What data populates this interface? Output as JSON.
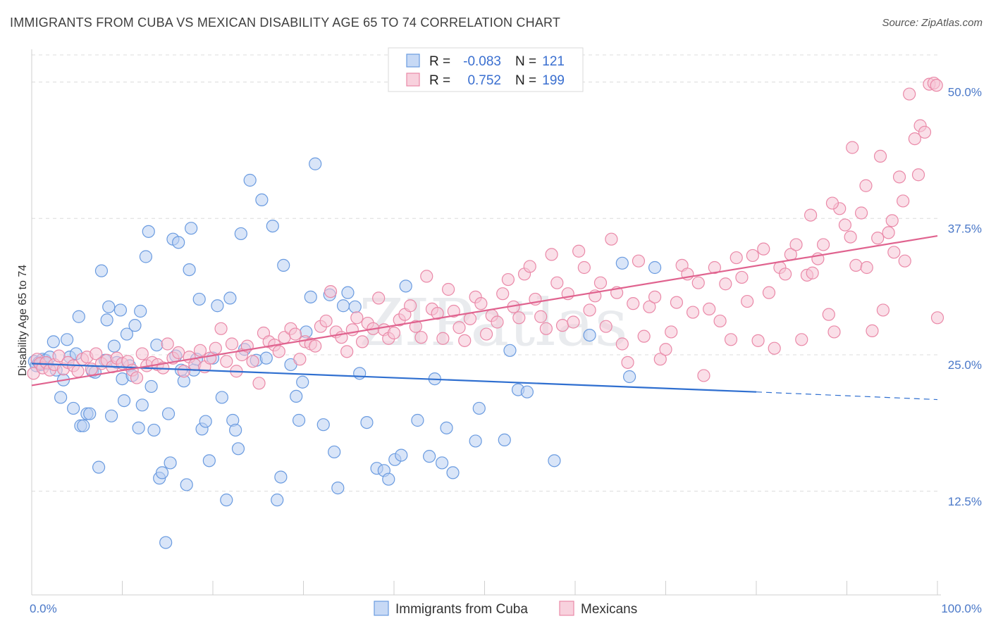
{
  "title": "IMMIGRANTS FROM CUBA VS MEXICAN DISABILITY AGE 65 TO 74 CORRELATION CHART",
  "source": "Source: ZipAtlas.com",
  "watermark": "ZIPatlas",
  "chart_data": {
    "type": "scatter",
    "xlabel": "",
    "ylabel": "Disability Age 65 to 74",
    "xlim": [
      0,
      100
    ],
    "ylim": [
      3,
      53
    ],
    "x_tick_labels": [
      "0.0%",
      "100.0%"
    ],
    "y_ticks": [
      12.5,
      25.0,
      37.5,
      50.0
    ],
    "y_tick_labels": [
      "12.5%",
      "25.0%",
      "37.5%",
      "50.0%"
    ],
    "grid": "horizontal dashed",
    "legend": {
      "placement": "top-center",
      "rows": [
        {
          "r_label": "R =",
          "r_value": "-0.083",
          "n_label": "N =",
          "n_value": "121"
        },
        {
          "r_label": "R =",
          "r_value": "0.752",
          "n_label": "N =",
          "n_value": "199"
        }
      ]
    },
    "series": [
      {
        "name": "Immigrants from Cuba",
        "color": "#6a9be0",
        "fill": "#b9d0f2",
        "trend": {
          "x0": 0,
          "y0": 24.2,
          "x1": 80,
          "y1": 21.6,
          "dash_to": 100,
          "dash_y": 20.9
        },
        "points": [
          [
            0.3,
            24.4
          ],
          [
            0.5,
            24.0
          ],
          [
            0.8,
            24.3
          ],
          [
            1.0,
            24.1
          ],
          [
            1.2,
            24.6
          ],
          [
            1.5,
            24.5
          ],
          [
            1.7,
            24.2
          ],
          [
            2.0,
            24.8
          ],
          [
            2.4,
            26.2
          ],
          [
            2.7,
            23.6
          ],
          [
            3.2,
            21.1
          ],
          [
            3.5,
            22.7
          ],
          [
            3.9,
            26.4
          ],
          [
            4.2,
            24.8
          ],
          [
            4.6,
            20.1
          ],
          [
            4.9,
            25.1
          ],
          [
            5.2,
            28.5
          ],
          [
            5.4,
            18.5
          ],
          [
            5.7,
            18.5
          ],
          [
            6.1,
            19.6
          ],
          [
            6.4,
            19.6
          ],
          [
            6.7,
            23.5
          ],
          [
            7.0,
            23.4
          ],
          [
            7.4,
            14.7
          ],
          [
            7.7,
            32.7
          ],
          [
            8.1,
            24.5
          ],
          [
            8.3,
            28.2
          ],
          [
            8.5,
            29.4
          ],
          [
            8.8,
            19.4
          ],
          [
            9.1,
            25.8
          ],
          [
            9.4,
            24.3
          ],
          [
            9.8,
            29.1
          ],
          [
            10.0,
            22.8
          ],
          [
            10.2,
            20.8
          ],
          [
            10.5,
            26.9
          ],
          [
            10.8,
            24.0
          ],
          [
            11.1,
            23.1
          ],
          [
            11.4,
            27.7
          ],
          [
            11.8,
            18.3
          ],
          [
            12.0,
            29.0
          ],
          [
            12.2,
            20.4
          ],
          [
            12.6,
            34.0
          ],
          [
            12.9,
            36.3
          ],
          [
            13.2,
            22.1
          ],
          [
            13.5,
            18.1
          ],
          [
            13.8,
            25.9
          ],
          [
            14.1,
            13.7
          ],
          [
            14.4,
            14.2
          ],
          [
            14.8,
            7.8
          ],
          [
            15.1,
            19.6
          ],
          [
            15.3,
            15.1
          ],
          [
            15.6,
            35.6
          ],
          [
            15.9,
            24.9
          ],
          [
            16.2,
            35.3
          ],
          [
            16.5,
            23.6
          ],
          [
            16.8,
            22.6
          ],
          [
            17.1,
            13.1
          ],
          [
            17.4,
            32.8
          ],
          [
            17.6,
            36.6
          ],
          [
            17.9,
            23.6
          ],
          [
            18.2,
            24.6
          ],
          [
            18.5,
            30.1
          ],
          [
            18.8,
            18.2
          ],
          [
            19.2,
            18.9
          ],
          [
            19.6,
            15.3
          ],
          [
            20.0,
            24.7
          ],
          [
            20.5,
            29.5
          ],
          [
            21.0,
            21.1
          ],
          [
            21.5,
            11.7
          ],
          [
            21.9,
            30.2
          ],
          [
            22.2,
            19.0
          ],
          [
            22.5,
            18.1
          ],
          [
            22.8,
            16.4
          ],
          [
            23.1,
            36.1
          ],
          [
            23.5,
            25.5
          ],
          [
            24.1,
            41.0
          ],
          [
            24.8,
            24.5
          ],
          [
            25.4,
            39.2
          ],
          [
            25.9,
            24.7
          ],
          [
            26.6,
            36.8
          ],
          [
            27.1,
            11.7
          ],
          [
            27.5,
            13.8
          ],
          [
            27.8,
            33.2
          ],
          [
            28.6,
            24.1
          ],
          [
            29.2,
            21.2
          ],
          [
            29.5,
            19.0
          ],
          [
            29.9,
            22.5
          ],
          [
            30.3,
            27.1
          ],
          [
            30.8,
            30.3
          ],
          [
            31.3,
            42.5
          ],
          [
            32.2,
            18.6
          ],
          [
            32.9,
            30.5
          ],
          [
            33.4,
            16.1
          ],
          [
            33.8,
            12.8
          ],
          [
            34.4,
            29.5
          ],
          [
            34.9,
            30.7
          ],
          [
            35.7,
            29.4
          ],
          [
            36.2,
            23.3
          ],
          [
            37.0,
            18.8
          ],
          [
            38.1,
            14.6
          ],
          [
            38.9,
            14.4
          ],
          [
            39.4,
            13.6
          ],
          [
            40.1,
            15.4
          ],
          [
            40.8,
            15.8
          ],
          [
            41.3,
            31.3
          ],
          [
            42.6,
            19.0
          ],
          [
            43.9,
            15.7
          ],
          [
            44.5,
            22.8
          ],
          [
            45.3,
            15.1
          ],
          [
            45.8,
            18.3
          ],
          [
            46.5,
            14.2
          ],
          [
            49.0,
            17.1
          ],
          [
            49.4,
            20.1
          ],
          [
            52.2,
            17.2
          ],
          [
            52.8,
            25.4
          ],
          [
            53.7,
            21.8
          ],
          [
            54.7,
            21.6
          ],
          [
            57.7,
            15.3
          ],
          [
            61.6,
            26.8
          ],
          [
            66.0,
            23.0
          ],
          [
            65.2,
            33.4
          ],
          [
            68.8,
            33.0
          ]
        ]
      },
      {
        "name": "Mexicans",
        "color": "#ea89a8",
        "fill": "#f6c5d5",
        "trend": {
          "x0": 0,
          "y0": 22.2,
          "x1": 100,
          "y1": 35.9
        },
        "points": [
          [
            0.2,
            23.3
          ],
          [
            0.6,
            24.6
          ],
          [
            0.9,
            24.2
          ],
          [
            1.2,
            23.8
          ],
          [
            1.6,
            24.3
          ],
          [
            2.0,
            23.6
          ],
          [
            2.5,
            24.1
          ],
          [
            3.0,
            24.9
          ],
          [
            3.5,
            23.7
          ],
          [
            4.0,
            24.3
          ],
          [
            4.6,
            24.0
          ],
          [
            5.1,
            23.5
          ],
          [
            5.6,
            24.6
          ],
          [
            6.1,
            24.8
          ],
          [
            6.6,
            23.7
          ],
          [
            7.1,
            25.1
          ],
          [
            7.7,
            24.2
          ],
          [
            8.3,
            24.5
          ],
          [
            8.9,
            23.9
          ],
          [
            9.4,
            24.7
          ],
          [
            10.0,
            24.2
          ],
          [
            10.6,
            24.4
          ],
          [
            11.1,
            23.6
          ],
          [
            11.6,
            22.9
          ],
          [
            12.2,
            25.1
          ],
          [
            12.7,
            24.0
          ],
          [
            13.3,
            24.3
          ],
          [
            13.9,
            24.1
          ],
          [
            14.5,
            23.8
          ],
          [
            15.0,
            26.0
          ],
          [
            15.6,
            24.7
          ],
          [
            16.2,
            25.2
          ],
          [
            16.8,
            23.5
          ],
          [
            17.4,
            24.8
          ],
          [
            18.0,
            24.1
          ],
          [
            18.6,
            25.4
          ],
          [
            19.1,
            23.9
          ],
          [
            19.7,
            24.7
          ],
          [
            20.3,
            25.6
          ],
          [
            20.9,
            27.4
          ],
          [
            21.5,
            24.4
          ],
          [
            22.1,
            26.0
          ],
          [
            22.6,
            23.5
          ],
          [
            23.2,
            25.0
          ],
          [
            23.8,
            25.8
          ],
          [
            24.4,
            24.4
          ],
          [
            25.1,
            22.4
          ],
          [
            25.6,
            27.0
          ],
          [
            26.2,
            26.2
          ],
          [
            26.8,
            25.9
          ],
          [
            27.3,
            25.3
          ],
          [
            27.9,
            26.6
          ],
          [
            28.6,
            27.4
          ],
          [
            29.1,
            26.9
          ],
          [
            29.6,
            24.6
          ],
          [
            30.2,
            26.2
          ],
          [
            30.8,
            26.0
          ],
          [
            31.3,
            25.8
          ],
          [
            31.9,
            27.6
          ],
          [
            32.5,
            28.1
          ],
          [
            33.0,
            30.8
          ],
          [
            33.6,
            27.1
          ],
          [
            34.2,
            26.6
          ],
          [
            34.8,
            25.3
          ],
          [
            35.4,
            27.3
          ],
          [
            35.9,
            28.4
          ],
          [
            36.5,
            26.2
          ],
          [
            37.1,
            27.9
          ],
          [
            37.7,
            27.4
          ],
          [
            38.3,
            30.2
          ],
          [
            38.9,
            27.3
          ],
          [
            39.4,
            26.5
          ],
          [
            40.0,
            27.0
          ],
          [
            40.6,
            28.2
          ],
          [
            41.2,
            28.7
          ],
          [
            41.8,
            29.5
          ],
          [
            42.4,
            27.6
          ],
          [
            43.0,
            26.6
          ],
          [
            43.6,
            32.2
          ],
          [
            44.2,
            29.2
          ],
          [
            44.8,
            28.8
          ],
          [
            45.4,
            26.5
          ],
          [
            46.0,
            31.0
          ],
          [
            46.6,
            29.0
          ],
          [
            47.2,
            27.5
          ],
          [
            47.8,
            26.3
          ],
          [
            48.4,
            28.3
          ],
          [
            49.0,
            30.3
          ],
          [
            49.6,
            29.7
          ],
          [
            50.2,
            26.9
          ],
          [
            50.8,
            28.6
          ],
          [
            51.4,
            28.0
          ],
          [
            52.0,
            30.6
          ],
          [
            52.6,
            31.9
          ],
          [
            53.2,
            29.4
          ],
          [
            53.8,
            28.4
          ],
          [
            54.4,
            32.4
          ],
          [
            55.0,
            33.1
          ],
          [
            55.6,
            30.1
          ],
          [
            56.2,
            28.5
          ],
          [
            56.8,
            27.4
          ],
          [
            57.4,
            34.2
          ],
          [
            58.0,
            31.6
          ],
          [
            58.6,
            27.7
          ],
          [
            59.2,
            30.6
          ],
          [
            59.8,
            28.0
          ],
          [
            60.4,
            34.5
          ],
          [
            61.0,
            33.0
          ],
          [
            61.6,
            29.1
          ],
          [
            62.2,
            30.4
          ],
          [
            62.8,
            31.6
          ],
          [
            63.4,
            27.6
          ],
          [
            64.0,
            35.6
          ],
          [
            64.6,
            30.7
          ],
          [
            65.2,
            26.0
          ],
          [
            65.8,
            24.3
          ],
          [
            66.4,
            29.7
          ],
          [
            67.0,
            33.6
          ],
          [
            67.6,
            26.7
          ],
          [
            68.2,
            29.4
          ],
          [
            68.8,
            30.3
          ],
          [
            69.4,
            24.6
          ],
          [
            70.0,
            25.5
          ],
          [
            70.6,
            27.1
          ],
          [
            71.2,
            29.8
          ],
          [
            71.8,
            33.2
          ],
          [
            72.4,
            32.4
          ],
          [
            73.0,
            28.9
          ],
          [
            73.6,
            31.6
          ],
          [
            74.2,
            23.1
          ],
          [
            74.8,
            29.2
          ],
          [
            75.4,
            33.0
          ],
          [
            76.0,
            28.1
          ],
          [
            76.6,
            31.5
          ],
          [
            77.2,
            26.4
          ],
          [
            77.8,
            33.9
          ],
          [
            78.4,
            32.1
          ],
          [
            79.0,
            29.9
          ],
          [
            79.6,
            34.1
          ],
          [
            80.2,
            26.3
          ],
          [
            80.8,
            34.7
          ],
          [
            81.4,
            30.7
          ],
          [
            82.0,
            25.6
          ],
          [
            82.6,
            33.0
          ],
          [
            83.2,
            32.4
          ],
          [
            83.8,
            34.2
          ],
          [
            84.4,
            35.1
          ],
          [
            85.0,
            26.4
          ],
          [
            85.6,
            32.3
          ],
          [
            86.2,
            32.5
          ],
          [
            86.8,
            33.8
          ],
          [
            87.4,
            35.1
          ],
          [
            88.0,
            28.7
          ],
          [
            88.6,
            27.1
          ],
          [
            89.2,
            38.4
          ],
          [
            89.8,
            36.9
          ],
          [
            90.4,
            35.8
          ],
          [
            91.0,
            33.2
          ],
          [
            91.6,
            38.0
          ],
          [
            92.2,
            33.0
          ],
          [
            92.8,
            27.2
          ],
          [
            93.4,
            35.7
          ],
          [
            94.0,
            29.1
          ],
          [
            94.6,
            36.2
          ],
          [
            95.2,
            34.4
          ],
          [
            95.8,
            41.3
          ],
          [
            96.4,
            33.6
          ],
          [
            96.9,
            48.9
          ],
          [
            97.5,
            44.8
          ],
          [
            98.1,
            46.0
          ],
          [
            98.6,
            45.4
          ],
          [
            99.1,
            49.8
          ],
          [
            99.6,
            49.9
          ],
          [
            99.9,
            49.7
          ],
          [
            100.0,
            28.4
          ],
          [
            97.9,
            41.5
          ],
          [
            96.2,
            39.1
          ],
          [
            95.0,
            37.3
          ],
          [
            93.7,
            43.2
          ],
          [
            92.1,
            40.5
          ],
          [
            90.6,
            44.0
          ],
          [
            88.4,
            38.9
          ],
          [
            86.0,
            37.8
          ]
        ]
      }
    ]
  },
  "bottom_legend": [
    {
      "label": "Immigrants from Cuba"
    },
    {
      "label": "Mexicans"
    }
  ]
}
